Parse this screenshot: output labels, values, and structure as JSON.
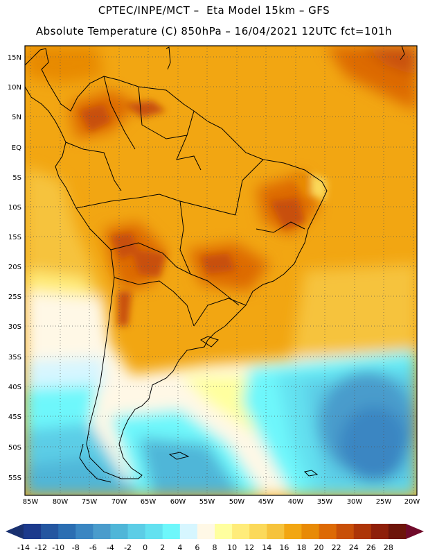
{
  "title": {
    "line1": "CPTEC/INPE/MCT –  Eta Model 15km – GFS",
    "line2": "Absolute Temperature (C) 850hPa – 16/04/2021 12UTC fct=101h"
  },
  "lat_labels": [
    "15N",
    "10N",
    "5N",
    "EQ",
    "5S",
    "10S",
    "15S",
    "20S",
    "25S",
    "30S",
    "35S",
    "40S",
    "45S",
    "50S",
    "55S"
  ],
  "lon_labels": [
    "85W",
    "80W",
    "75W",
    "70W",
    "65W",
    "60W",
    "55W",
    "50W",
    "45W",
    "40W",
    "35W",
    "30W",
    "25W",
    "20W"
  ],
  "colorbar": {
    "labels": [
      "-14",
      "-12",
      "-10",
      "-8",
      "-6",
      "-4",
      "-2",
      "0",
      "2",
      "4",
      "6",
      "8",
      "10",
      "12",
      "14",
      "16",
      "18",
      "20",
      "22",
      "24",
      "26",
      "28"
    ],
    "colors": [
      "#1c3a8c",
      "#2456a0",
      "#2b6eb2",
      "#3a86c2",
      "#4a9ccc",
      "#4fb6d8",
      "#5ccde6",
      "#63e1f0",
      "#6ef7fb",
      "#d6f6ff",
      "#fff8e6",
      "#ffff9f",
      "#ffec7a",
      "#fbd95a",
      "#f6c33c",
      "#f2a612",
      "#e88a06",
      "#dd6a05",
      "#c84f08",
      "#ad3508",
      "#8e1f0a",
      "#6d140a"
    ],
    "under_color": "#193170",
    "over_color": "#700a2a"
  },
  "colors": {
    "background": "#ffffff",
    "grid": "#555555",
    "coast": "#000000"
  }
}
